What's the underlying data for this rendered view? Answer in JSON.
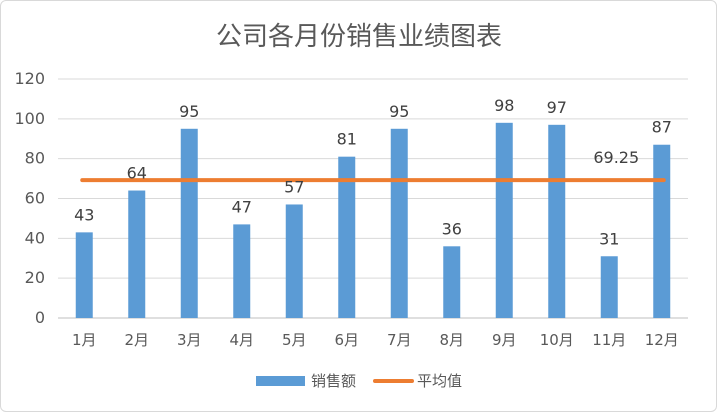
{
  "chart_data": {
    "type": "bar",
    "title": "公司各月份销售业绩图表",
    "categories": [
      "1月",
      "2月",
      "3月",
      "4月",
      "5月",
      "6月",
      "7月",
      "8月",
      "9月",
      "10月",
      "11月",
      "12月"
    ],
    "series": [
      {
        "name": "销售额",
        "type": "bar",
        "color": "#5b9bd5",
        "values": [
          43,
          64,
          95,
          47,
          57,
          81,
          95,
          36,
          98,
          97,
          31,
          87
        ]
      },
      {
        "name": "平均值",
        "type": "line",
        "color": "#ed7d31",
        "values": [
          69.25,
          69.25,
          69.25,
          69.25,
          69.25,
          69.25,
          69.25,
          69.25,
          69.25,
          69.25,
          69.25,
          69.25
        ]
      }
    ],
    "average_label": "69.25",
    "ylim": [
      0,
      120
    ],
    "yticks": [
      "0",
      "20",
      "40",
      "60",
      "80",
      "100",
      "120"
    ],
    "grid": true,
    "legend": "bottom"
  }
}
